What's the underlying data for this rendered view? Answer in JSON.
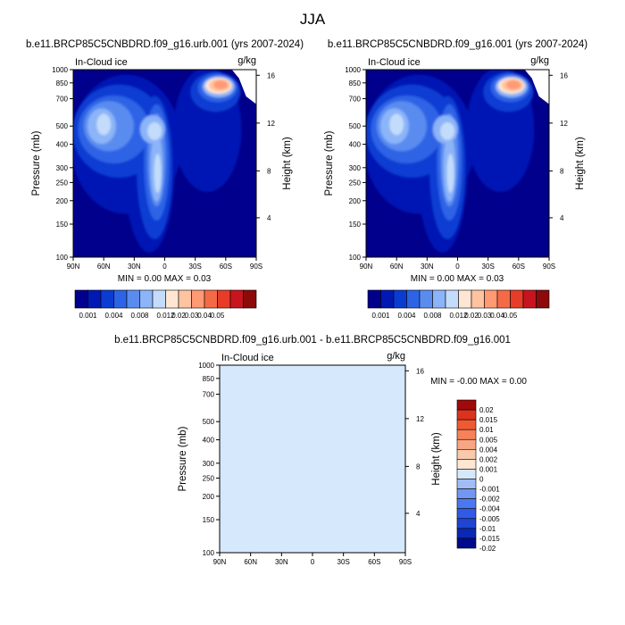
{
  "figure": {
    "season": "JJA"
  },
  "colors": {
    "sequential": [
      "#00008c",
      "#0019b4",
      "#0a3cd2",
      "#2d64e6",
      "#5a8cf0",
      "#8cb4f8",
      "#c3dcfc",
      "#ffe6d2",
      "#ffc3a0",
      "#ff9a73",
      "#f56a46",
      "#e63c28",
      "#c8141e",
      "#8c0a0a"
    ],
    "diverging": [
      "#000a8c",
      "#0a28b4",
      "#1e46d2",
      "#325ae6",
      "#4b78f0",
      "#7396f0",
      "#a0bef5",
      "#d6e8fc",
      "#fde6d2",
      "#fac8aa",
      "#f7a582",
      "#f5825a",
      "#f05a32",
      "#dc321e",
      "#a00a0a"
    ]
  },
  "chart_data": [
    {
      "type": "heatmap",
      "title": "b.e11.BRCP85C5CNBDRD.f09_g16.urb.001 (yrs 2007-2024)",
      "left_label": "In-Cloud ice",
      "units": "g/kg",
      "ylabel": "Pressure (mb)",
      "ylabel_right": "Height (km)",
      "x_ticks": [
        "90N",
        "60N",
        "30N",
        "0",
        "30S",
        "60S",
        "90S"
      ],
      "y_ticks": [
        "100",
        "150",
        "200",
        "250",
        "300",
        "400",
        "500",
        "700",
        "850",
        "1000"
      ],
      "y_log_scale": true,
      "y_right_ticks": [
        "16",
        "12",
        "8",
        "4"
      ],
      "min_max": "MIN =   0.00  MAX =   0.03",
      "colorbar_labels": [
        "0.001",
        "0.004",
        "0.008",
        "0.012",
        "0.02",
        "0.03",
        "0.04",
        "0.05"
      ],
      "colorbar_orientation": "horizontal",
      "features": [
        {
          "lat": 8,
          "p": 300,
          "value": 0.025
        },
        {
          "lat": 10,
          "p": 470,
          "value": 0.02
        },
        {
          "lat": 62,
          "p": 500,
          "value": 0.012
        },
        {
          "lat": -53,
          "p": 820,
          "value": 0.03
        }
      ]
    },
    {
      "type": "heatmap",
      "title": "b.e11.BRCP85C5CNBDRD.f09_g16.001 (yrs 2007-2024)",
      "left_label": "In-Cloud ice",
      "units": "g/kg",
      "ylabel": "Pressure (mb)",
      "ylabel_right": "Height (km)",
      "x_ticks": [
        "90N",
        "60N",
        "30N",
        "0",
        "30S",
        "60S",
        "90S"
      ],
      "y_ticks": [
        "100",
        "150",
        "200",
        "250",
        "300",
        "400",
        "500",
        "700",
        "850",
        "1000"
      ],
      "y_log_scale": true,
      "y_right_ticks": [
        "16",
        "12",
        "8",
        "4"
      ],
      "min_max": "MIN =   0.00  MAX =   0.03",
      "colorbar_labels": [
        "0.001",
        "0.004",
        "0.008",
        "0.012",
        "0.02",
        "0.03",
        "0.04",
        "0.05"
      ],
      "colorbar_orientation": "horizontal",
      "features": [
        {
          "lat": 8,
          "p": 300,
          "value": 0.025
        },
        {
          "lat": 10,
          "p": 470,
          "value": 0.02
        },
        {
          "lat": 62,
          "p": 500,
          "value": 0.012
        },
        {
          "lat": -53,
          "p": 820,
          "value": 0.03
        }
      ]
    },
    {
      "type": "heatmap",
      "title": "b.e11.BRCP85C5CNBDRD.f09_g16.urb.001 - b.e11.BRCP85C5CNBDRD.f09_g16.001",
      "left_label": "In-Cloud ice",
      "units": "g/kg",
      "ylabel": "Pressure (mb)",
      "ylabel_right": "Height (km)",
      "x_ticks": [
        "90N",
        "60N",
        "30N",
        "0",
        "30S",
        "60S",
        "90S"
      ],
      "y_ticks": [
        "100",
        "150",
        "200",
        "250",
        "300",
        "400",
        "500",
        "700",
        "850",
        "1000"
      ],
      "y_log_scale": true,
      "y_right_ticks": [
        "16",
        "12",
        "8",
        "4"
      ],
      "min_max": "MIN =  -0.00  MAX =   0.00",
      "colorbar_labels": [
        "0.02",
        "0.015",
        "0.01",
        "0.005",
        "0.004",
        "0.002",
        "0.001",
        "0",
        "-0.001",
        "-0.002",
        "-0.004",
        "-0.005",
        "-0.01",
        "-0.015",
        "-0.02"
      ],
      "colorbar_orientation": "vertical",
      "dominant_values": [
        "0",
        "-0.001"
      ]
    }
  ]
}
